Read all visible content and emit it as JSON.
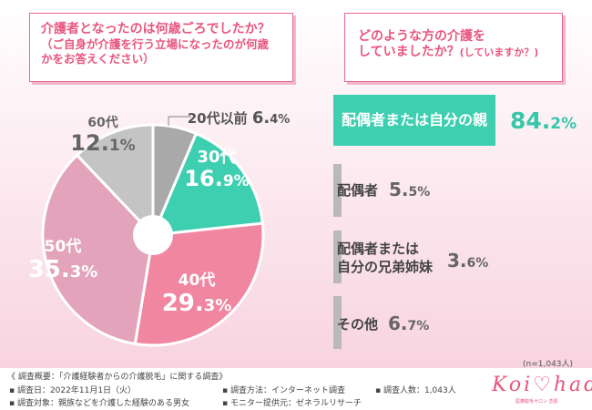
{
  "question1": {
    "line1": "介護者となったのは何歳ごろでしたか？",
    "line2": "（ご自身が介護を行う立場になったのが何歳",
    "line3": "かをお答えください）"
  },
  "question2": {
    "line1": "どのような方の介護を",
    "line2": "していましたか？",
    "line2_sub": "(していますか？)"
  },
  "chart_data": [
    {
      "type": "pie",
      "title": "介護者となったのは何歳ごろでしたか？",
      "categories": [
        "20代以前",
        "30代",
        "40代",
        "50代",
        "60代"
      ],
      "values": [
        6.4,
        16.9,
        29.3,
        35.3,
        12.1
      ],
      "labels": [
        {
          "name": "20代以前",
          "int": "6.",
          "dec": "4%"
        },
        {
          "name": "30代",
          "int": "16.",
          "dec": "9%"
        },
        {
          "name": "40代",
          "int": "29.",
          "dec": "3%"
        },
        {
          "name": "50代",
          "int": "35.",
          "dec": "3%"
        },
        {
          "name": "60代",
          "int": "12.",
          "dec": "1%"
        }
      ],
      "colors": [
        "#a9a9a9",
        "#3ecfb1",
        "#f0869f",
        "#e3a3bb",
        "#c4c4c4"
      ]
    },
    {
      "type": "bar",
      "title": "どのような方の介護をしていましたか？",
      "categories": [
        "配偶者または自分の親",
        "配偶者",
        "配偶者または自分の兄弟姉妹",
        "その他"
      ],
      "values": [
        84.2,
        5.5,
        3.6,
        6.7
      ],
      "labels": [
        {
          "l1": "配偶者または自分の親",
          "l2": "",
          "int": "84.",
          "dec": "2%"
        },
        {
          "l1": "配偶者",
          "l2": "",
          "int": "5.",
          "dec": "5%"
        },
        {
          "l1": "配偶者または",
          "l2": "自分の兄弟姉妹",
          "int": "3.",
          "dec": "6%"
        },
        {
          "l1": "その他",
          "l2": "",
          "int": "6.",
          "dec": "7%"
        }
      ],
      "colors": [
        "#3ecfb1",
        "#b9b9b9"
      ]
    }
  ],
  "sample_size": "(n=1,043人)",
  "footer": {
    "summary": "《 調査概要：「介護経験者からの介護脱毛」に関する調査》",
    "date": "▪ 調査日：2022年11月1日（火）",
    "method": "▪ 調査方法：インターネット調査",
    "count": "▪ 調査人数：1,043人",
    "target": "▪ 調査対象：親族などを介護した経験のある男女",
    "monitor": "▪ モニター提供元：ゼネラルリサーチ"
  },
  "logo": {
    "text": "Koi♡hada",
    "sub": "医療脱毛サロン 恋肌"
  }
}
